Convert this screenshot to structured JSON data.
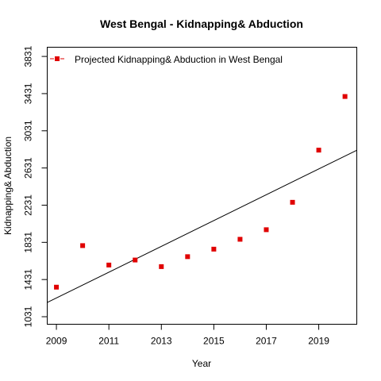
{
  "chart_data": {
    "type": "scatter",
    "title": "West Bengal  -  Kidnapping& Abduction",
    "xlabel": "Year",
    "ylabel": "Kidnapping& Abduction",
    "xlim": [
      2008.65,
      2020.45
    ],
    "ylim": [
      950,
      3930
    ],
    "x_ticks": [
      2009,
      2011,
      2013,
      2015,
      2017,
      2019
    ],
    "y_ticks": [
      1031,
      1431,
      1831,
      2231,
      2631,
      3031,
      3431,
      3831
    ],
    "grid": false,
    "legend": {
      "position": "top-left",
      "entries": [
        "Projected  Kidnapping& Abduction  in  West Bengal"
      ]
    },
    "colors": {
      "points": "#e00000",
      "trend_line": "#000000",
      "legend_line": "#e00000"
    },
    "series": [
      {
        "name": "Projected  Kidnapping& Abduction  in  West Bengal",
        "x": [
          2009,
          2010,
          2011,
          2012,
          2013,
          2014,
          2015,
          2016,
          2017,
          2018,
          2019,
          2020
        ],
        "y": [
          1349,
          1796,
          1587,
          1641,
          1570,
          1677,
          1758,
          1864,
          1967,
          2262,
          2823,
          3400
        ]
      }
    ],
    "trend_line": {
      "x": [
        2008.65,
        2020.45
      ],
      "y": [
        1184,
        2822
      ]
    }
  }
}
